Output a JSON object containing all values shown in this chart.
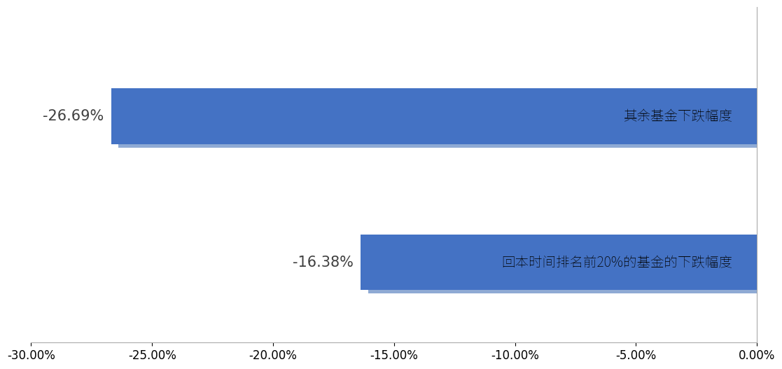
{
  "values": [
    -0.2669,
    -0.1638
  ],
  "value_labels": [
    "-26.69%",
    "-16.38%"
  ],
  "bar_labels": [
    "其余基金下跌幅度",
    "回本时间排名前20%的基金的下跌幅度"
  ],
  "bar_color": "#4472C4",
  "shadow_color": "#8FAAD4",
  "xlim": [
    -0.3,
    0.0
  ],
  "xticks": [
    -0.3,
    -0.25,
    -0.2,
    -0.15,
    -0.1,
    -0.05,
    0.0
  ],
  "xtick_labels": [
    "-30.00%",
    "-25.00%",
    "-20.00%",
    "-15.00%",
    "-10.00%",
    "-5.00%",
    "0.00%"
  ],
  "background_color": "#ffffff",
  "bar_height": 0.38,
  "text_fontsize": 15,
  "label_fontsize": 14,
  "tick_fontsize": 12
}
